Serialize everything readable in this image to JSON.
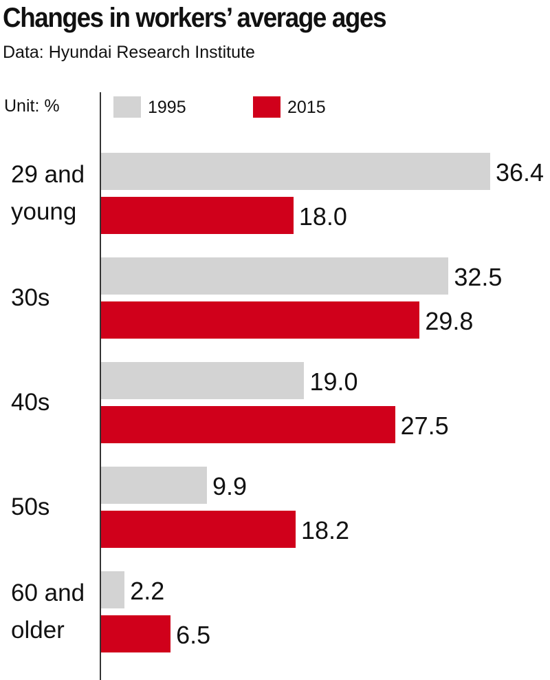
{
  "chart_data": {
    "type": "bar",
    "orientation": "horizontal",
    "title": "Changes in workers’ average ages",
    "subtitle": "Data: Hyundai Research Institute",
    "unit_label": "Unit: %",
    "categories": [
      "29 and young",
      "30s",
      "40s",
      "50s",
      "60 and older"
    ],
    "series": [
      {
        "name": "1995",
        "color": "#d3d3d3",
        "values": [
          36.4,
          32.5,
          19.0,
          9.9,
          2.2
        ],
        "value_labels": [
          "36.4",
          "32.5",
          "19.0",
          "9.9",
          "2.2"
        ]
      },
      {
        "name": "2015",
        "color": "#d0001b",
        "values": [
          18.0,
          29.8,
          27.5,
          18.2,
          6.5
        ],
        "value_labels": [
          "18.0",
          "29.8",
          "27.5",
          "18.2",
          "6.5"
        ]
      }
    ]
  }
}
